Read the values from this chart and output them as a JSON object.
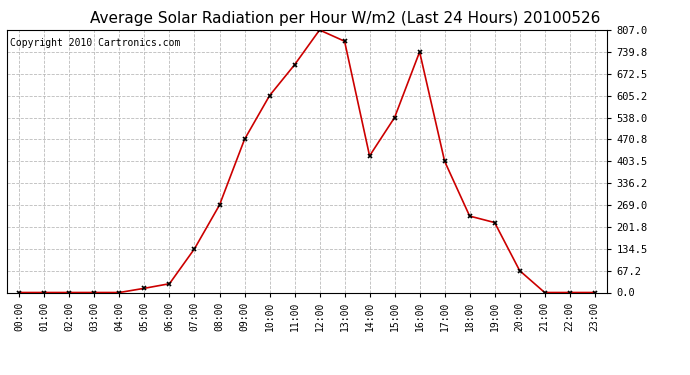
{
  "title": "Average Solar Radiation per Hour W/m2 (Last 24 Hours) 20100526",
  "copyright": "Copyright 2010 Cartronics.com",
  "hours": [
    0,
    1,
    2,
    3,
    4,
    5,
    6,
    7,
    8,
    9,
    10,
    11,
    12,
    13,
    14,
    15,
    16,
    17,
    18,
    19,
    20,
    21,
    22,
    23
  ],
  "hour_labels": [
    "00:00",
    "01:00",
    "02:00",
    "03:00",
    "04:00",
    "05:00",
    "06:00",
    "07:00",
    "08:00",
    "09:00",
    "10:00",
    "11:00",
    "12:00",
    "13:00",
    "14:00",
    "15:00",
    "16:00",
    "17:00",
    "18:00",
    "19:00",
    "20:00",
    "21:00",
    "22:00",
    "23:00"
  ],
  "values": [
    0.0,
    0.0,
    0.0,
    0.0,
    0.0,
    13.0,
    27.0,
    134.5,
    269.0,
    470.8,
    605.2,
    700.0,
    807.0,
    772.5,
    420.0,
    538.0,
    739.8,
    403.5,
    235.0,
    215.0,
    67.2,
    0.0,
    0.0,
    0.0
  ],
  "ymax": 807.0,
  "ymin": 0.0,
  "yticks": [
    0.0,
    67.2,
    134.5,
    201.8,
    269.0,
    336.2,
    403.5,
    470.8,
    538.0,
    605.2,
    672.5,
    739.8,
    807.0
  ],
  "line_color": "#cc0000",
  "marker": "x",
  "marker_color": "black",
  "bg_color": "#ffffff",
  "plot_bg_color": "#ffffff",
  "grid_color": "#bbbbbb",
  "title_fontsize": 11,
  "copyright_fontsize": 7,
  "tick_fontsize": 7.5,
  "xlabel_fontsize": 7
}
